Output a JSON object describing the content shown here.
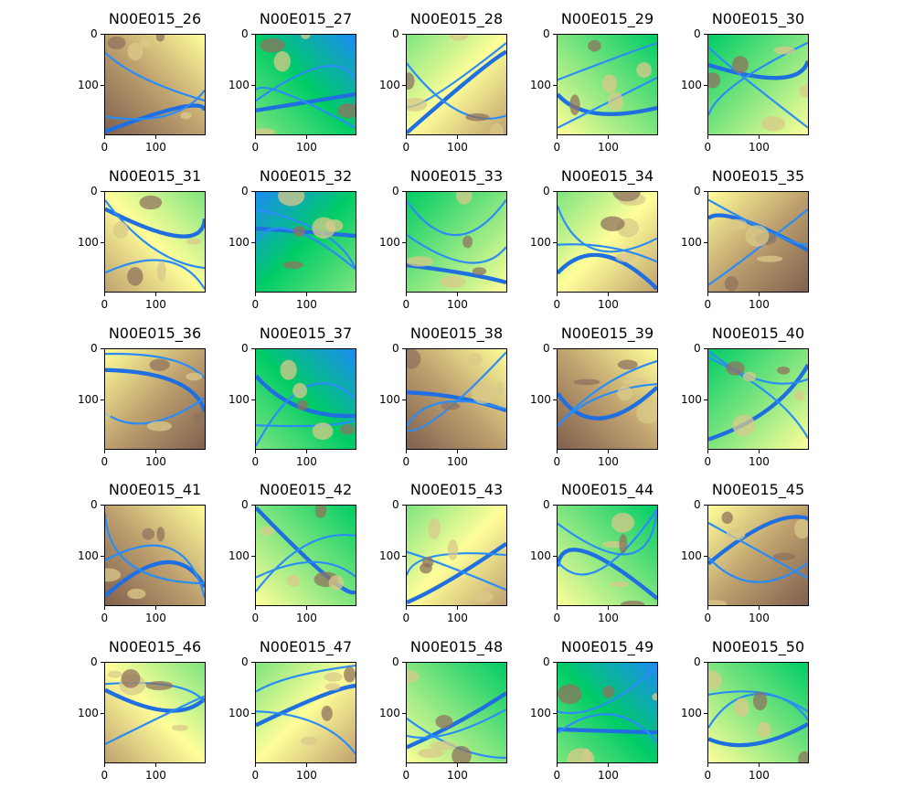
{
  "chart_data": {
    "type": "heatmap",
    "colormap": "terrain",
    "grid": false,
    "panels": [
      {
        "title": "N00E015_26"
      },
      {
        "title": "N00E015_27"
      },
      {
        "title": "N00E015_28"
      },
      {
        "title": "N00E015_29"
      },
      {
        "title": "N00E015_30"
      },
      {
        "title": "N00E015_31"
      },
      {
        "title": "N00E015_32"
      },
      {
        "title": "N00E015_33"
      },
      {
        "title": "N00E015_34"
      },
      {
        "title": "N00E015_35"
      },
      {
        "title": "N00E015_36"
      },
      {
        "title": "N00E015_37"
      },
      {
        "title": "N00E015_38"
      },
      {
        "title": "N00E015_39"
      },
      {
        "title": "N00E015_40"
      },
      {
        "title": "N00E015_41"
      },
      {
        "title": "N00E015_42"
      },
      {
        "title": "N00E015_43"
      },
      {
        "title": "N00E015_44"
      },
      {
        "title": "N00E015_45"
      },
      {
        "title": "N00E015_46"
      },
      {
        "title": "N00E015_47"
      },
      {
        "title": "N00E015_48"
      },
      {
        "title": "N00E015_49"
      },
      {
        "title": "N00E015_50"
      }
    ],
    "xticks": [
      "0",
      "100"
    ],
    "yticks": [
      "0",
      "100"
    ],
    "xlim": [
      0,
      200
    ],
    "ylim": [
      200,
      0
    ]
  }
}
